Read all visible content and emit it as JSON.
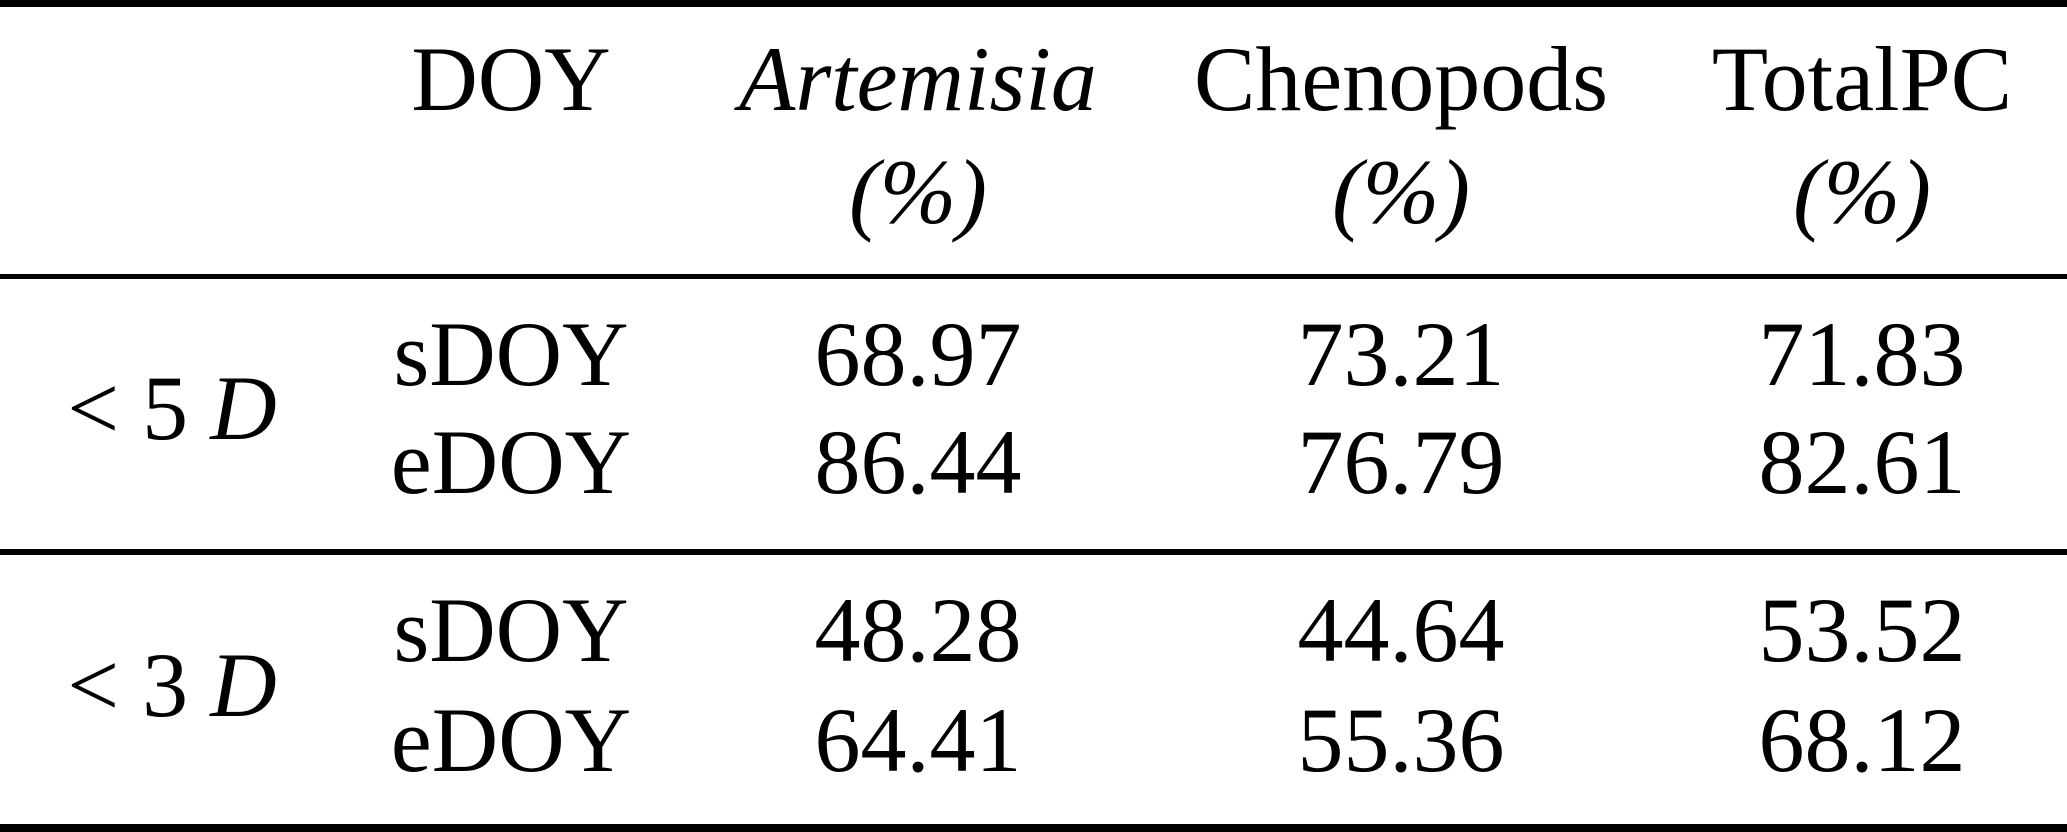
{
  "table": {
    "description": "classification accuracy table",
    "colors": {
      "text": "#000000",
      "background": "#ffffff",
      "rule": "#000000"
    },
    "header": {
      "doy": "DOY",
      "artemisia": "Artemisia",
      "chenopods": "Chenopods",
      "totalpc": "TotalPC",
      "unit": "(%)"
    },
    "groups": [
      {
        "label_prefix": "< 5",
        "label_var": "D",
        "rows": [
          {
            "doy": "sDOY",
            "artemisia": "68.97",
            "chenopods": "73.21",
            "totalpc": "71.83"
          },
          {
            "doy": "eDOY",
            "artemisia": "86.44",
            "chenopods": "76.79",
            "totalpc": "82.61"
          }
        ]
      },
      {
        "label_prefix": "< 3",
        "label_var": "D",
        "rows": [
          {
            "doy": "sDOY",
            "artemisia": "48.28",
            "chenopods": "44.64",
            "totalpc": "53.52"
          },
          {
            "doy": "eDOY",
            "artemisia": "64.41",
            "chenopods": "55.36",
            "totalpc": "68.12"
          }
        ]
      }
    ]
  }
}
